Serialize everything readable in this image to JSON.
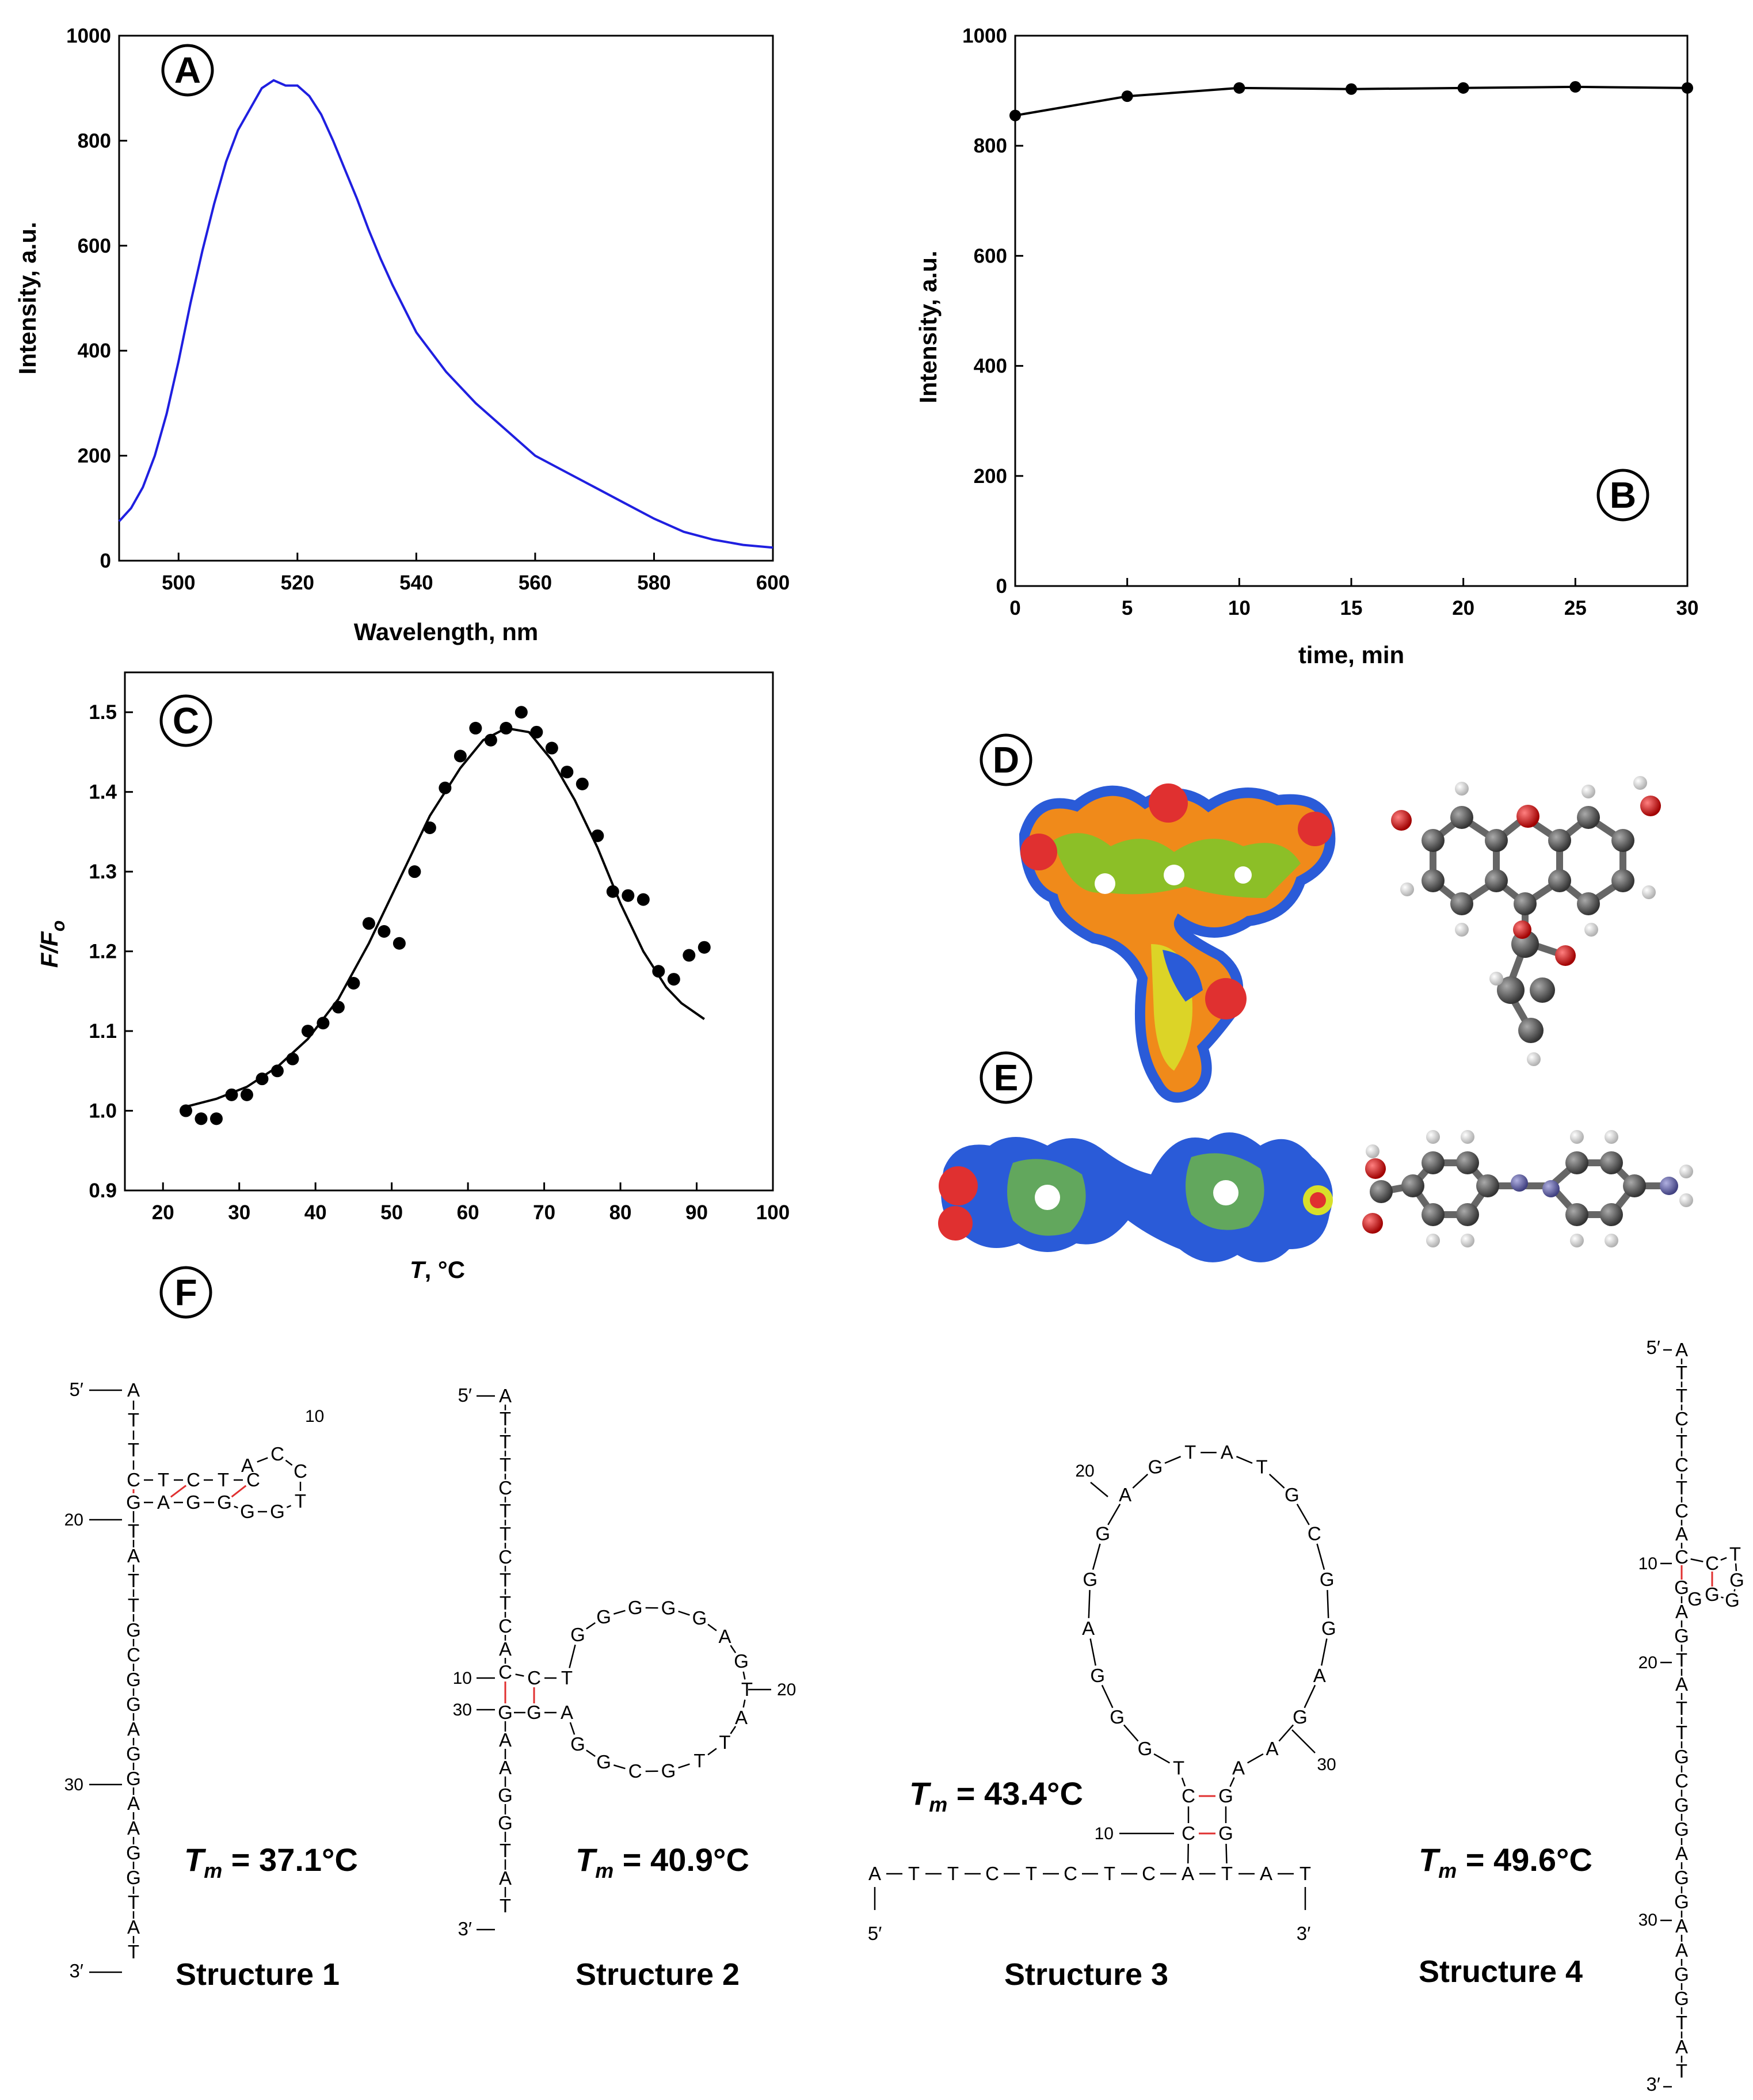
{
  "panels": {
    "A": "A",
    "B": "B",
    "C": "C",
    "D": "D",
    "E": "E",
    "F": "F"
  },
  "chart_data": [
    {
      "id": "A",
      "type": "line",
      "xlabel": "Wavelength, nm",
      "ylabel": "Intensity, a.u.",
      "xlim": [
        490,
        600
      ],
      "ylim": [
        0,
        1000
      ],
      "xticks": [
        "500",
        "520",
        "540",
        "560",
        "580",
        "600"
      ],
      "yticks": [
        "0",
        "200",
        "400",
        "600",
        "800",
        "1000"
      ],
      "series": [
        {
          "name": "spectrum",
          "color": "#1f1fe0",
          "x": [
            490,
            492,
            494,
            496,
            498,
            500,
            502,
            504,
            506,
            508,
            510,
            512,
            514,
            516,
            518,
            520,
            522,
            524,
            526,
            528,
            530,
            532,
            534,
            536,
            538,
            540,
            545,
            550,
            555,
            560,
            565,
            570,
            575,
            580,
            585,
            590,
            595,
            600
          ],
          "y": [
            75,
            100,
            140,
            200,
            280,
            380,
            490,
            590,
            680,
            760,
            820,
            860,
            900,
            915,
            905,
            905,
            885,
            850,
            800,
            745,
            690,
            630,
            575,
            525,
            480,
            435,
            360,
            300,
            250,
            200,
            170,
            140,
            110,
            80,
            55,
            40,
            30,
            25
          ]
        }
      ]
    },
    {
      "id": "B",
      "type": "line",
      "xlabel": "time, min",
      "ylabel": "Intensity, a.u.",
      "xlim": [
        0,
        30
      ],
      "ylim": [
        0,
        1000
      ],
      "xticks": [
        "0",
        "5",
        "10",
        "15",
        "20",
        "25",
        "30"
      ],
      "yticks": [
        "0",
        "200",
        "400",
        "600",
        "800",
        "1000"
      ],
      "series": [
        {
          "name": "kinetics",
          "color": "#000000",
          "x": [
            0,
            5,
            10,
            15,
            20,
            25,
            30
          ],
          "y": [
            855,
            890,
            905,
            903,
            905,
            907,
            905
          ]
        }
      ]
    },
    {
      "id": "C",
      "type": "scatter",
      "xlabel_italic": "T",
      "xlabel_rest": ", °C",
      "ylabel_main": "F/F",
      "ylabel_sub": "o",
      "xlim": [
        15,
        100
      ],
      "ylim": [
        0.9,
        1.55
      ],
      "xticks": [
        "20",
        "30",
        "40",
        "50",
        "60",
        "70",
        "80",
        "90",
        "100"
      ],
      "yticks": [
        "0.9",
        "1.0",
        "1.1",
        "1.2",
        "1.3",
        "1.4",
        "1.5"
      ],
      "points_x": [
        23,
        25,
        27,
        29,
        31,
        33,
        35,
        37,
        39,
        41,
        43,
        45,
        47,
        49,
        51,
        53,
        55,
        57,
        59,
        61,
        63,
        65,
        67,
        69,
        71,
        73,
        75,
        77,
        79,
        81,
        83,
        85,
        87,
        89,
        91
      ],
      "points_y": [
        1.0,
        0.99,
        0.99,
        1.02,
        1.02,
        1.04,
        1.05,
        1.065,
        1.1,
        1.11,
        1.13,
        1.16,
        1.235,
        1.225,
        1.21,
        1.3,
        1.355,
        1.405,
        1.445,
        1.48,
        1.465,
        1.48,
        1.5,
        1.475,
        1.455,
        1.425,
        1.41,
        1.345,
        1.275,
        1.27,
        1.265,
        1.175,
        1.165,
        1.195,
        1.205
      ],
      "fit_x": [
        23,
        27,
        31,
        35,
        39,
        43,
        47,
        51,
        55,
        59,
        62,
        65,
        68,
        71,
        74,
        77,
        80,
        83,
        86,
        88,
        91
      ],
      "fit_y": [
        1.005,
        1.015,
        1.03,
        1.055,
        1.09,
        1.14,
        1.21,
        1.29,
        1.37,
        1.43,
        1.465,
        1.48,
        1.475,
        1.44,
        1.39,
        1.33,
        1.26,
        1.2,
        1.155,
        1.135,
        1.115
      ]
    }
  ],
  "structures": [
    {
      "label": "Structure 1",
      "tm_prefix": "T",
      "tm_sub": "m",
      "tm_value": " = 37.1°C",
      "end5": "5′",
      "end3": "3′",
      "nums": [
        "10",
        "20",
        "30"
      ]
    },
    {
      "label": "Structure 2",
      "tm_prefix": "T",
      "tm_sub": "m",
      "tm_value": " = 40.9°C",
      "end5": "5′",
      "end3": "3′",
      "nums": [
        "10",
        "20",
        "30"
      ]
    },
    {
      "label": "Structure 3",
      "tm_prefix": "T",
      "tm_sub": "m",
      "tm_value": " = 43.4°C",
      "end5": "5′",
      "end3": "3′",
      "nums": [
        "10",
        "20",
        "30"
      ]
    },
    {
      "label": "Structure 4",
      "tm_prefix": "T",
      "tm_sub": "m",
      "tm_value": " = 49.6°C",
      "end5": "5′",
      "end3": "3′",
      "nums": [
        "10",
        "20",
        "30"
      ]
    }
  ],
  "seq1": {
    "stem5": [
      "A",
      "T",
      "T",
      "C"
    ],
    "top": [
      "T",
      "C",
      "T",
      "C"
    ],
    "loop": [
      "A",
      "C",
      "C",
      "T"
    ],
    "bot": [
      "G",
      "G",
      "G",
      "G",
      "A",
      "G"
    ],
    "stem3": [
      "T",
      "A",
      "T",
      "T",
      "G",
      "C",
      "G",
      "G",
      "A",
      "G",
      "G",
      "A",
      "A",
      "G",
      "G",
      "T",
      "A",
      "T"
    ]
  },
  "seq2": {
    "stem5": [
      "A",
      "T",
      "T",
      "T",
      "C",
      "T",
      "T",
      "C",
      "T",
      "T",
      "C",
      "A",
      "C"
    ],
    "pair_top": [
      "C",
      "T"
    ],
    "loop": [
      "G",
      "G",
      "G",
      "G",
      "G",
      "A",
      "G",
      "T",
      "A",
      "T",
      "T",
      "G",
      "C",
      "G",
      "G"
    ],
    "pair_bot": [
      "A",
      "G"
    ],
    "stem3": [
      "G",
      "A",
      "A",
      "G",
      "G",
      "T",
      "A",
      "T"
    ]
  },
  "seq3": {
    "linear": [
      "A",
      "T",
      "T",
      "C",
      "T",
      "C",
      "T",
      "C",
      "A",
      "T",
      "A",
      "T"
    ],
    "stem_left": [
      "C",
      "C"
    ],
    "stem_right": [
      "G",
      "G"
    ],
    "loop": [
      "T",
      "G",
      "G",
      "G",
      "A",
      "G",
      "G",
      "A",
      "G",
      "T",
      "A",
      "T",
      "G",
      "C",
      "G",
      "G",
      "A",
      "G",
      "A",
      "A"
    ]
  },
  "seq4": {
    "stem5": [
      "A",
      "T",
      "T",
      "C",
      "T",
      "C",
      "T",
      "C",
      "A",
      "C"
    ],
    "loop": [
      "C",
      "T",
      "G",
      "G",
      "G",
      "G"
    ],
    "stem3": [
      "G",
      "A",
      "G",
      "T",
      "A",
      "T",
      "T",
      "G",
      "C",
      "G",
      "G",
      "A",
      "G",
      "G",
      "A",
      "A",
      "G",
      "G",
      "T",
      "A",
      "T"
    ]
  },
  "colors": {
    "curveA": "#1f1fe0",
    "red": "#e03030",
    "orange": "#f08a1a",
    "green": "#7ac82a",
    "blue": "#2a5bd8",
    "yellow": "#d8e02a",
    "atomGrey": "#555555",
    "atomRed": "#d42020",
    "atomWhite": "#e8e8e8",
    "atomBlue": "#7070b0"
  }
}
